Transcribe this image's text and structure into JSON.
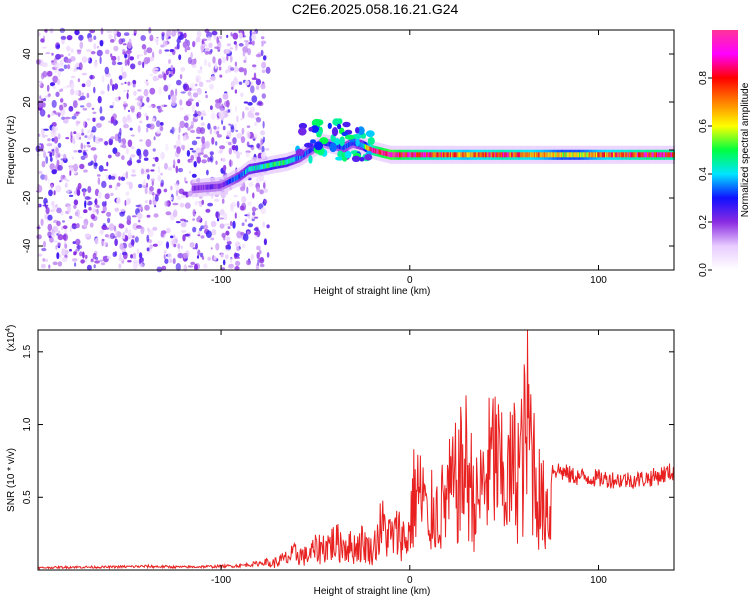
{
  "figure_title": "C2E6.2025.058.16.21.G24",
  "chart_data": [
    {
      "type": "heatmap",
      "title": "C2E6.2025.058.16.21.G24",
      "xlabel": "Height of straight line (km)",
      "ylabel": "Frequency (Hz)",
      "xlim": [
        -197,
        140
      ],
      "ylim": [
        -50,
        50
      ],
      "xticks": [
        -100,
        0,
        100
      ],
      "yticks": [
        -40,
        -20,
        0,
        20,
        40
      ],
      "xtick_labels": [
        "-100",
        "0",
        "100"
      ],
      "ytick_labels": [
        "-40",
        "-20",
        "0",
        "20",
        "40"
      ],
      "noise_region_x": [
        -197,
        -75
      ],
      "ridge": {
        "x": [
          -115,
          -100,
          -95,
          -90,
          -85,
          -78,
          -72,
          -65,
          -58,
          -52,
          -46,
          -40,
          -35,
          -30,
          -25,
          -20,
          -15,
          -10,
          -5,
          0,
          10,
          20,
          30,
          40,
          50,
          60,
          70,
          80,
          90,
          100,
          110,
          120,
          130,
          140
        ],
        "freq": [
          -16,
          -15,
          -13,
          -11,
          -8,
          -7,
          -6,
          -5,
          -3,
          0,
          3,
          2,
          1,
          3,
          2,
          0,
          -1,
          -2,
          -2,
          -2,
          -2,
          -2,
          -2,
          -2,
          -2,
          -2,
          -2,
          -2,
          -2,
          -2,
          -2,
          -2,
          -2,
          -2
        ],
        "amplitude": [
          0.2,
          0.22,
          0.3,
          0.35,
          0.4,
          0.45,
          0.5,
          0.45,
          0.35,
          0.3,
          0.25,
          0.3,
          0.35,
          0.3,
          0.4,
          0.8,
          0.9,
          0.95,
          0.9,
          0.85,
          0.8,
          0.75,
          0.7,
          0.75,
          0.8,
          0.75,
          0.7,
          0.6,
          0.6,
          0.7,
          0.75,
          0.8,
          0.85,
          0.8
        ]
      },
      "colorbar": {
        "label": "Normalized spectral amplitude",
        "range": [
          0,
          1
        ],
        "ticks": [
          0.0,
          0.2,
          0.4,
          0.6,
          0.8
        ],
        "tick_labels": [
          "0.0",
          "0.2",
          "0.4",
          "0.6",
          "0.8"
        ],
        "colormap": [
          "#ffffff",
          "#e8ccff",
          "#8a2be2",
          "#1010ff",
          "#00e5ff",
          "#00ff40",
          "#ffff00",
          "#ff8000",
          "#ff0000",
          "#ff00ff",
          "#ff3399"
        ]
      },
      "grid": false
    },
    {
      "type": "line",
      "xlabel": "Height of straight line (km)",
      "ylabel": "SNR (10 * v/v)",
      "scale_note": "(x10",
      "scale_exp": "4",
      "scale_close": ")",
      "xlim": [
        -197,
        140
      ],
      "ylim": [
        0,
        16500
      ],
      "xticks": [
        -100,
        0,
        100
      ],
      "yticks": [
        5000,
        10000,
        15000
      ],
      "xtick_labels": [
        "-100",
        "0",
        "100"
      ],
      "ytick_labels": [
        "0.5",
        "1.0",
        "1.5"
      ],
      "series": [
        {
          "color": "#e82020",
          "x": [
            -197,
            -180,
            -160,
            -140,
            -120,
            -100,
            -90,
            -80,
            -75,
            -70,
            -65,
            -60,
            -55,
            -50,
            -45,
            -40,
            -35,
            -30,
            -25,
            -20,
            -15,
            -10,
            -5,
            -2,
            0,
            2,
            4,
            6,
            8,
            10,
            12,
            15,
            20,
            25,
            30,
            35,
            40,
            45,
            50,
            55,
            60,
            62,
            65,
            68,
            70,
            75,
            80,
            85,
            90,
            100,
            110,
            120,
            130,
            140
          ],
          "values": [
            150,
            200,
            200,
            250,
            200,
            250,
            300,
            450,
            600,
            900,
            1300,
            1800,
            1500,
            2200,
            2600,
            3000,
            2800,
            2400,
            3000,
            2000,
            4800,
            3500,
            4200,
            3000,
            4500,
            7800,
            9000,
            7500,
            8500,
            2500,
            7200,
            6000,
            8000,
            9500,
            11500,
            7000,
            10000,
            12500,
            9000,
            11000,
            12000,
            16500,
            13000,
            8500,
            7000,
            7000,
            6800,
            6500,
            6400,
            6300,
            6200,
            6200,
            6400,
            6800
          ]
        }
      ],
      "grid": false
    }
  ]
}
